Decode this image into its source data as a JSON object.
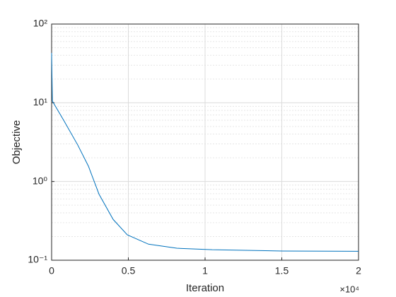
{
  "chart_data": {
    "type": "line",
    "xlabel": "Iteration",
    "ylabel": "Objective",
    "x_multiplier_label": "×10⁴",
    "x": [
      0,
      50,
      783,
      1705,
      2396,
      3088,
      4009,
      4931,
      6313,
      8157,
      10461,
      15069,
      20000
    ],
    "series": [
      {
        "color": "#0072bd",
        "values": [
          43,
          10.5,
          6.0,
          2.9,
          1.57,
          0.69,
          0.33,
          0.21,
          0.16,
          0.142,
          0.136,
          0.131,
          0.13
        ]
      }
    ],
    "xlim": [
      0,
      20000
    ],
    "xticks": [
      0,
      {
        "value": 5000,
        "label": "0.5"
      },
      {
        "value": 10000,
        "label": "1"
      },
      {
        "value": 15000,
        "label": "1.5"
      },
      {
        "value": 20000,
        "label": "2"
      }
    ],
    "ylim": [
      0.1,
      100
    ],
    "yticks": [
      {
        "value": 0.1,
        "label": "10⁻¹"
      },
      {
        "value": 1,
        "label": "10⁰"
      },
      {
        "value": 10,
        "label": "10¹"
      },
      {
        "value": 100,
        "label": "10²"
      }
    ],
    "yscale": "log",
    "grid": true,
    "minor_grid": true
  }
}
